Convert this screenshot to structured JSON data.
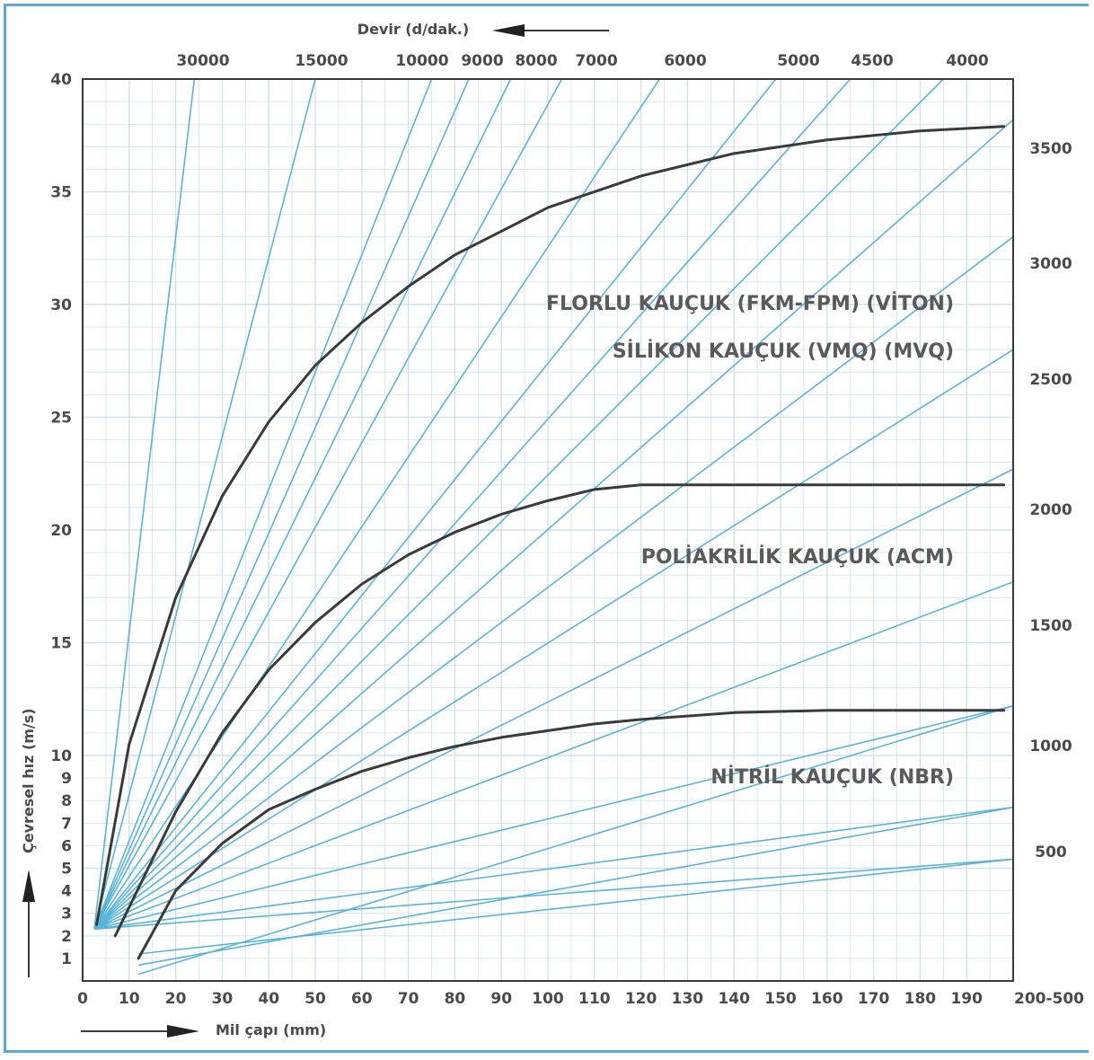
{
  "chart_data": {
    "type": "line",
    "xlabel": "Mil çapı (mm)",
    "ylabel": "Çevresel hız (m/s)",
    "top_axis_label": "Devir (d/dak.)",
    "x_ticks": [
      "0",
      "10",
      "20",
      "30",
      "40",
      "50",
      "60",
      "70",
      "80",
      "90",
      "100",
      "110",
      "120",
      "130",
      "140",
      "150",
      "160",
      "170",
      "180",
      "190",
      "200-500"
    ],
    "y_ticks": [
      "1",
      "2",
      "3",
      "4",
      "5",
      "6",
      "7",
      "8",
      "9",
      "10",
      "15",
      "20",
      "25",
      "30",
      "35",
      "40"
    ],
    "xlim": [
      0,
      200
    ],
    "ylim": [
      0,
      40
    ],
    "rpm_top": [
      "30000",
      "15000",
      "10000",
      "9000",
      "8000",
      "7000",
      "6000",
      "5000",
      "4500",
      "4000"
    ],
    "rpm_right": [
      "3500",
      "3000",
      "2500",
      "2000",
      "1500",
      "1000",
      "500"
    ],
    "series": [
      {
        "name": "FLORLU KAUÇUK (FKM-FPM) (VİTON)",
        "x": [
          3,
          10,
          20,
          30,
          40,
          50,
          60,
          70,
          80,
          100,
          120,
          140,
          160,
          180,
          198
        ],
        "y": [
          2.5,
          10.5,
          17,
          21.5,
          24.8,
          27.3,
          29.2,
          30.8,
          32.2,
          34.3,
          35.7,
          36.7,
          37.3,
          37.7,
          37.9
        ]
      },
      {
        "name": "SİLİKON KAUÇUK (VMQ) (MVQ)",
        "x": [
          3,
          10,
          20,
          30,
          40,
          50,
          60,
          70,
          80,
          100,
          120,
          140,
          160,
          180,
          198
        ],
        "y": [
          2.5,
          10.5,
          17,
          21.5,
          24.8,
          27.3,
          29.2,
          30.8,
          32.2,
          34.3,
          35.7,
          36.7,
          37.3,
          37.7,
          37.9
        ]
      },
      {
        "name": "POLİAKRİLİK KAUÇUK (ACM)",
        "x": [
          7,
          20,
          30,
          40,
          50,
          60,
          70,
          80,
          90,
          100,
          110,
          120,
          130,
          150,
          170,
          198
        ],
        "y": [
          2,
          7.5,
          11,
          13.8,
          15.9,
          17.6,
          18.9,
          19.9,
          20.7,
          21.3,
          21.8,
          22,
          22,
          22,
          22,
          22
        ]
      },
      {
        "name": "NİTRİL KAUÇUK (NBR)",
        "x": [
          12,
          20,
          30,
          40,
          50,
          60,
          70,
          80,
          90,
          100,
          110,
          120,
          140,
          160,
          198
        ],
        "y": [
          1,
          4,
          6.1,
          7.6,
          8.5,
          9.3,
          9.9,
          10.4,
          10.8,
          11.1,
          11.4,
          11.6,
          11.9,
          12,
          12
        ]
      }
    ],
    "grid": true,
    "colors": {
      "curves": "#3a3a3a",
      "rpm_lines": "#5ab4d8",
      "grid": "#d2e2ea",
      "frame": "#5aa9dc"
    }
  }
}
